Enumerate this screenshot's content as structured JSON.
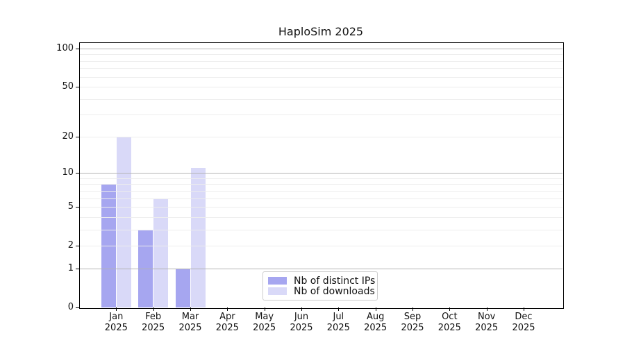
{
  "chart_data": {
    "type": "bar",
    "title": "HaploSim 2025",
    "year_label": "2025",
    "months": [
      "Jan",
      "Feb",
      "Mar",
      "Apr",
      "May",
      "Jun",
      "Jul",
      "Aug",
      "Sep",
      "Oct",
      "Nov",
      "Dec"
    ],
    "series": [
      {
        "name": "Nb of distinct IPs",
        "color": "#a6a6f0",
        "values": [
          8,
          3,
          1,
          0,
          0,
          0,
          0,
          0,
          0,
          0,
          0,
          0
        ]
      },
      {
        "name": "Nb of downloads",
        "color": "#d9d9f8",
        "values": [
          20,
          6,
          11,
          0,
          0,
          0,
          0,
          0,
          0,
          0,
          0,
          0
        ]
      }
    ],
    "y_scale": "log1p",
    "ylim": [
      0,
      100
    ],
    "y_ticks": [
      0,
      1,
      2,
      5,
      10,
      20,
      50,
      100
    ],
    "grid": {
      "major_values": [
        1,
        10,
        100
      ],
      "minor_values": [
        2,
        3,
        4,
        5,
        6,
        7,
        8,
        9,
        20,
        30,
        40,
        50,
        60,
        70,
        80,
        90
      ],
      "major_color": "#b3b3b3",
      "minor_color": "#ededed"
    },
    "legend_position": "lower center",
    "axis_color": "#000000",
    "background": "#ffffff"
  }
}
